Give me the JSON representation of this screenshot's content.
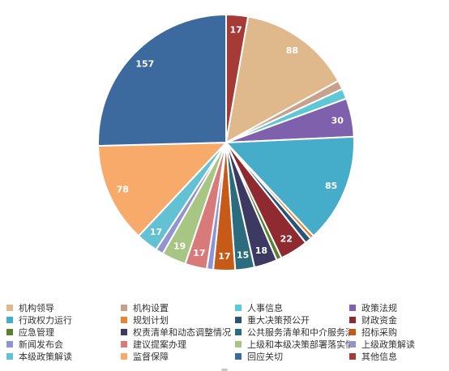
{
  "chart_data": {
    "type": "pie",
    "categories": [
      "机构领导",
      "机构设置",
      "人事信息",
      "政策法规",
      "行政权力运行",
      "规划计划",
      "重大决策预公开",
      "财政资金",
      "应急管理",
      "权责清单和动态调整情况",
      "公共服务清单和中介服务清单",
      "招标采购",
      "新闻发布会",
      "建议提案办理",
      "上级和本级决策部署落实情况",
      "上级政策解读",
      "本级政策解读",
      "监督保障",
      "回应关切",
      "其他信息"
    ],
    "values": [
      88,
      7,
      8,
      30,
      85,
      3,
      5,
      22,
      4,
      18,
      15,
      17,
      5,
      17,
      19,
      6,
      17,
      78,
      157,
      17
    ],
    "colors": [
      "#dfb98c",
      "#c8a18e",
      "#5ec8d6",
      "#7e60ac",
      "#45acc9",
      "#e9862d",
      "#27557a",
      "#8f2a30",
      "#5b7f2e",
      "#3c3a62",
      "#2b6d7f",
      "#c65a16",
      "#8d93d8",
      "#d97a7a",
      "#a8c683",
      "#9393cf",
      "#62c1d2",
      "#f8aa6b",
      "#3d6a9e",
      "#a53a36"
    ],
    "data_labels": [
      "88",
      "",
      "",
      "30",
      "85",
      "",
      "",
      "22",
      "",
      "18",
      "15",
      "17",
      "",
      "17",
      "19",
      "",
      "17",
      "78",
      "157",
      "17"
    ]
  }
}
